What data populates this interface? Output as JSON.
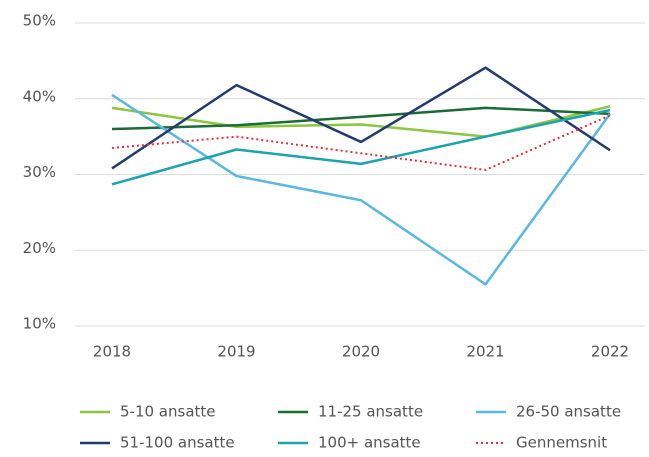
{
  "chart_data": {
    "type": "line",
    "categories": [
      "2018",
      "2019",
      "2020",
      "2021",
      "2022"
    ],
    "series": [
      {
        "name": "5-10 ansatte",
        "color": "#8cc63f",
        "values": [
          38.8,
          36.3,
          36.6,
          35.0,
          39.0
        ]
      },
      {
        "name": "11-25 ansatte",
        "color": "#1b6b34",
        "values": [
          36.0,
          36.5,
          37.6,
          38.8,
          38.0
        ]
      },
      {
        "name": "26-50 ansatte",
        "color": "#5bb8e0",
        "values": [
          40.5,
          29.8,
          26.6,
          15.5,
          38.0
        ]
      },
      {
        "name": "51-100 ansatte",
        "color": "#233a6e",
        "values": [
          30.8,
          41.8,
          34.3,
          44.1,
          33.2
        ]
      },
      {
        "name": "100+ ansatte",
        "color": "#1ba3b0",
        "values": [
          28.7,
          33.3,
          31.4,
          35.0,
          38.5
        ]
      },
      {
        "name": "Gennemsnit",
        "color": "#e0303a",
        "linestyle": "dotted",
        "values": [
          33.5,
          35.0,
          32.8,
          30.6,
          37.8
        ]
      }
    ],
    "ylim": [
      10,
      50
    ],
    "yticks": [
      {
        "value": 10,
        "label": "10%"
      },
      {
        "value": 20,
        "label": "20%"
      },
      {
        "value": 30,
        "label": "30%"
      },
      {
        "value": 40,
        "label": "40%"
      },
      {
        "value": 50,
        "label": "50%"
      }
    ],
    "grid": true
  }
}
